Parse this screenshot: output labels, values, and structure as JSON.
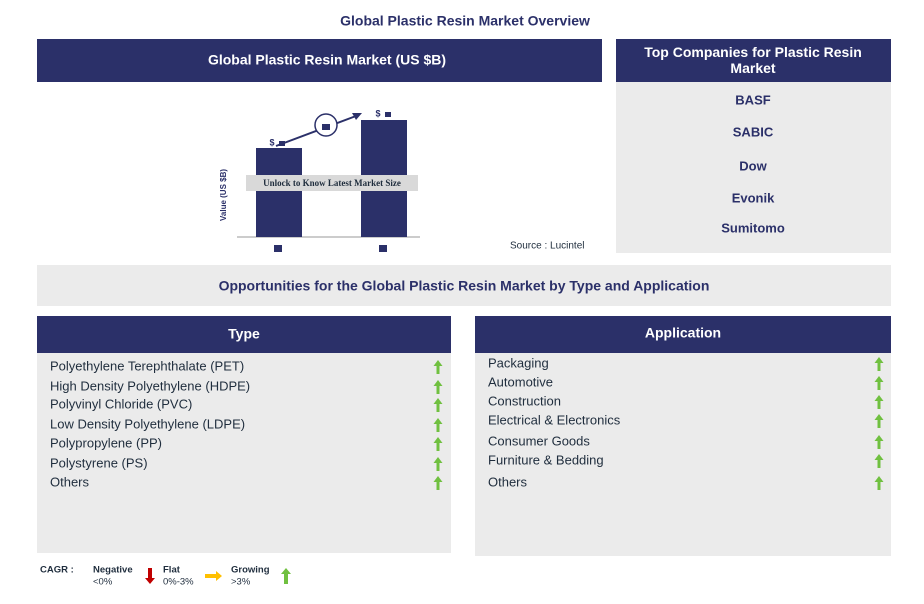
{
  "title": "Global Plastic Resin Market Overview",
  "market_chart": {
    "header": "Global Plastic Resin Market (US $B)",
    "y_axis_label": "Value (US $B)",
    "bar_labels": [
      "$",
      "$"
    ],
    "banner": "Unlock to Know Latest Market Size",
    "source": "Source : Lucintel"
  },
  "companies": {
    "header": "Top Companies for Plastic Resin Market",
    "items": [
      "BASF",
      "SABIC",
      "Dow",
      "Evonik",
      "Sumitomo"
    ]
  },
  "opportunities": {
    "header": "Opportunities for the Global Plastic Resin Market by Type and Application",
    "type": {
      "header": "Type",
      "items": [
        "Polyethylene Terephthalate (PET)",
        "High Density Polyethylene (HDPE)",
        "Polyvinyl Chloride (PVC)",
        "Low Density Polyethylene (LDPE)",
        "Polypropylene (PP)",
        "Polystyrene (PS)",
        "Others"
      ]
    },
    "application": {
      "header": "Application",
      "items": [
        "Packaging",
        "Automotive",
        "Construction",
        "Electrical & Electronics",
        "Consumer Goods",
        "Furniture & Bedding",
        "Others"
      ]
    }
  },
  "legend": {
    "label": "CAGR :",
    "negative": {
      "name": "Negative",
      "range": "<0%"
    },
    "flat": {
      "name": "Flat",
      "range": "0%-3%"
    },
    "growing": {
      "name": "Growing",
      "range": ">3%"
    }
  }
}
